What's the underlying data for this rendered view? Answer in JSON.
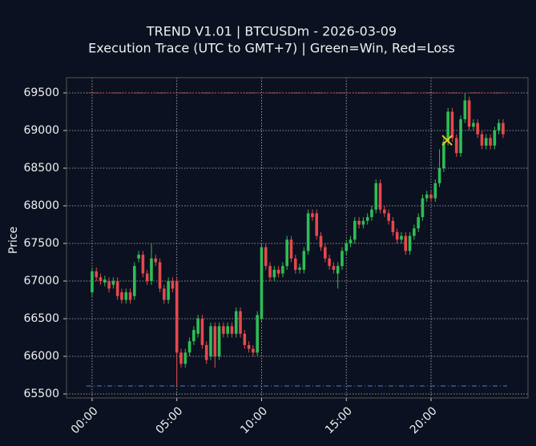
{
  "chart_data": {
    "type": "candlestick",
    "title": "TREND V1.01 | BTCUSDm - 2026-03-09",
    "subtitle": "Execution Trace (UTC to GMT+7) | Green=Win, Red=Loss",
    "y_label": "Price",
    "up_color": "#2ebd55",
    "down_color": "#e5484d",
    "grid": true,
    "xlim": [
      -1.51,
      25.72
    ],
    "ylim": [
      65447,
      69702
    ],
    "xticks": [
      {
        "value": 0,
        "label": "00:00"
      },
      {
        "value": 5,
        "label": "05:00"
      },
      {
        "value": 10,
        "label": "10:00"
      },
      {
        "value": 15,
        "label": "15:00"
      },
      {
        "value": 20,
        "label": "20:00"
      }
    ],
    "yticks": [
      65500,
      66000,
      66500,
      67000,
      67500,
      68000,
      68500,
      69000,
      69500
    ],
    "x": [
      0,
      0.25,
      0.5,
      0.75,
      1,
      1.25,
      1.5,
      1.75,
      2,
      2.25,
      2.5,
      2.75,
      3,
      3.25,
      3.5,
      3.75,
      4,
      4.25,
      4.5,
      4.75,
      5,
      5.25,
      5.5,
      5.75,
      6,
      6.25,
      6.5,
      6.75,
      7,
      7.25,
      7.5,
      7.75,
      8,
      8.25,
      8.5,
      8.75,
      9,
      9.25,
      9.5,
      9.75,
      10,
      10.25,
      10.5,
      10.75,
      11,
      11.25,
      11.5,
      11.75,
      12,
      12.25,
      12.5,
      12.75,
      13,
      13.25,
      13.5,
      13.75,
      14,
      14.25,
      14.5,
      14.75,
      15,
      15.25,
      15.5,
      15.75,
      16,
      16.25,
      16.5,
      16.75,
      17,
      17.25,
      17.5,
      17.75,
      18,
      18.25,
      18.5,
      18.75,
      19,
      19.25,
      19.5,
      19.75,
      20,
      20.25,
      20.5,
      20.75,
      21,
      21.25,
      21.5,
      21.75,
      22,
      22.25,
      22.5,
      22.75,
      23,
      23.25,
      23.5,
      23.75,
      24,
      24.25
    ],
    "open": [
      66850,
      67130,
      67050,
      66980,
      67000,
      66950,
      67000,
      66850,
      66750,
      66850,
      66800,
      67300,
      67350,
      67100,
      67000,
      67300,
      67250,
      66900,
      66750,
      67000,
      67000,
      66050,
      65900,
      66050,
      66200,
      66300,
      66500,
      66150,
      66000,
      66400,
      66000,
      66400,
      66300,
      66400,
      66300,
      66600,
      66300,
      66150,
      66100,
      66050,
      66500,
      67450,
      67200,
      67050,
      67150,
      67100,
      67200,
      67550,
      67300,
      67150,
      67150,
      67400,
      67900,
      67900,
      67600,
      67450,
      67300,
      67200,
      67100,
      67200,
      67400,
      67500,
      67550,
      67800,
      67750,
      67800,
      67850,
      67950,
      68300,
      67950,
      67900,
      67800,
      67650,
      67550,
      67600,
      67400,
      67600,
      67700,
      67850,
      68100,
      68150,
      68100,
      68300,
      68500,
      68850,
      69250,
      68900,
      68700,
      69150,
      69400,
      69050,
      69100,
      68950,
      68800,
      68900,
      68800,
      69000,
      69100
    ],
    "high": [
      67180,
      67180,
      67100,
      67070,
      67050,
      67050,
      67050,
      66900,
      66900,
      66900,
      67250,
      67400,
      67400,
      67150,
      67500,
      67350,
      67300,
      66950,
      67050,
      67050,
      67050,
      66100,
      66100,
      66250,
      66400,
      66550,
      66550,
      66200,
      66450,
      66450,
      66450,
      66450,
      66450,
      66450,
      66650,
      66650,
      66350,
      66200,
      66150,
      66600,
      67500,
      67500,
      67250,
      67200,
      67200,
      67250,
      67600,
      67600,
      67350,
      67230,
      67450,
      67950,
      67950,
      67950,
      67650,
      67500,
      67350,
      67250,
      67250,
      67450,
      67550,
      67600,
      67850,
      67850,
      67850,
      67900,
      68000,
      68350,
      68350,
      68000,
      67950,
      67850,
      67700,
      67650,
      67650,
      67650,
      67750,
      67900,
      68150,
      68200,
      68200,
      68350,
      68750,
      68900,
      69300,
      69300,
      68950,
      69200,
      69500,
      69450,
      69150,
      69150,
      69000,
      68950,
      68950,
      69050,
      69150,
      69150
    ],
    "low": [
      66800,
      67000,
      66950,
      66930,
      66850,
      66900,
      66750,
      66700,
      66700,
      66700,
      66750,
      67250,
      67050,
      66950,
      66950,
      67200,
      66850,
      66700,
      66700,
      66850,
      65600,
      65850,
      65850,
      66000,
      66150,
      66250,
      66100,
      65900,
      65950,
      65850,
      65950,
      66250,
      66250,
      66250,
      66250,
      66250,
      66100,
      66050,
      66000,
      66000,
      66450,
      67150,
      67000,
      67000,
      67050,
      67050,
      67150,
      67250,
      67100,
      67100,
      67100,
      67350,
      67800,
      67550,
      67400,
      67250,
      67150,
      67100,
      66900,
      67150,
      67350,
      67450,
      67500,
      67700,
      67700,
      67750,
      67800,
      67900,
      67900,
      67850,
      67750,
      67600,
      67500,
      67500,
      67350,
      67350,
      67550,
      67650,
      67800,
      68050,
      68050,
      68050,
      68250,
      68450,
      68800,
      68850,
      68650,
      68650,
      69100,
      69000,
      69000,
      68900,
      68750,
      68750,
      68750,
      68750,
      68950,
      68900
    ],
    "close": [
      67130,
      67050,
      67000,
      67020,
      66900,
      67000,
      66800,
      66750,
      66850,
      66750,
      67200,
      67350,
      67100,
      67000,
      67300,
      67250,
      66900,
      66750,
      67000,
      66900,
      66050,
      65900,
      66050,
      66200,
      66350,
      66500,
      66150,
      65950,
      66400,
      66000,
      66400,
      66300,
      66400,
      66300,
      66600,
      66300,
      66150,
      66100,
      66050,
      66550,
      67450,
      67200,
      67050,
      67150,
      67100,
      67200,
      67550,
      67300,
      67150,
      67180,
      67400,
      67900,
      67850,
      67600,
      67450,
      67300,
      67200,
      67150,
      67200,
      67400,
      67500,
      67550,
      67800,
      67750,
      67800,
      67850,
      67950,
      68300,
      67950,
      67900,
      67800,
      67650,
      67550,
      67600,
      67400,
      67600,
      67700,
      67850,
      68100,
      68150,
      68100,
      68300,
      68500,
      68850,
      69250,
      68900,
      68700,
      69150,
      69400,
      69050,
      69100,
      68950,
      68800,
      68900,
      68800,
      69000,
      69100,
      68950
    ],
    "hlines": [
      {
        "value": 69500,
        "color": "#e5484d",
        "dash": "2,2"
      },
      {
        "value": 65606,
        "color": "#4a7be0",
        "dash": "6,3,1,3"
      }
    ],
    "markers": [
      {
        "x": 20.95,
        "y": 68870,
        "color": "#f0c419"
      }
    ]
  }
}
